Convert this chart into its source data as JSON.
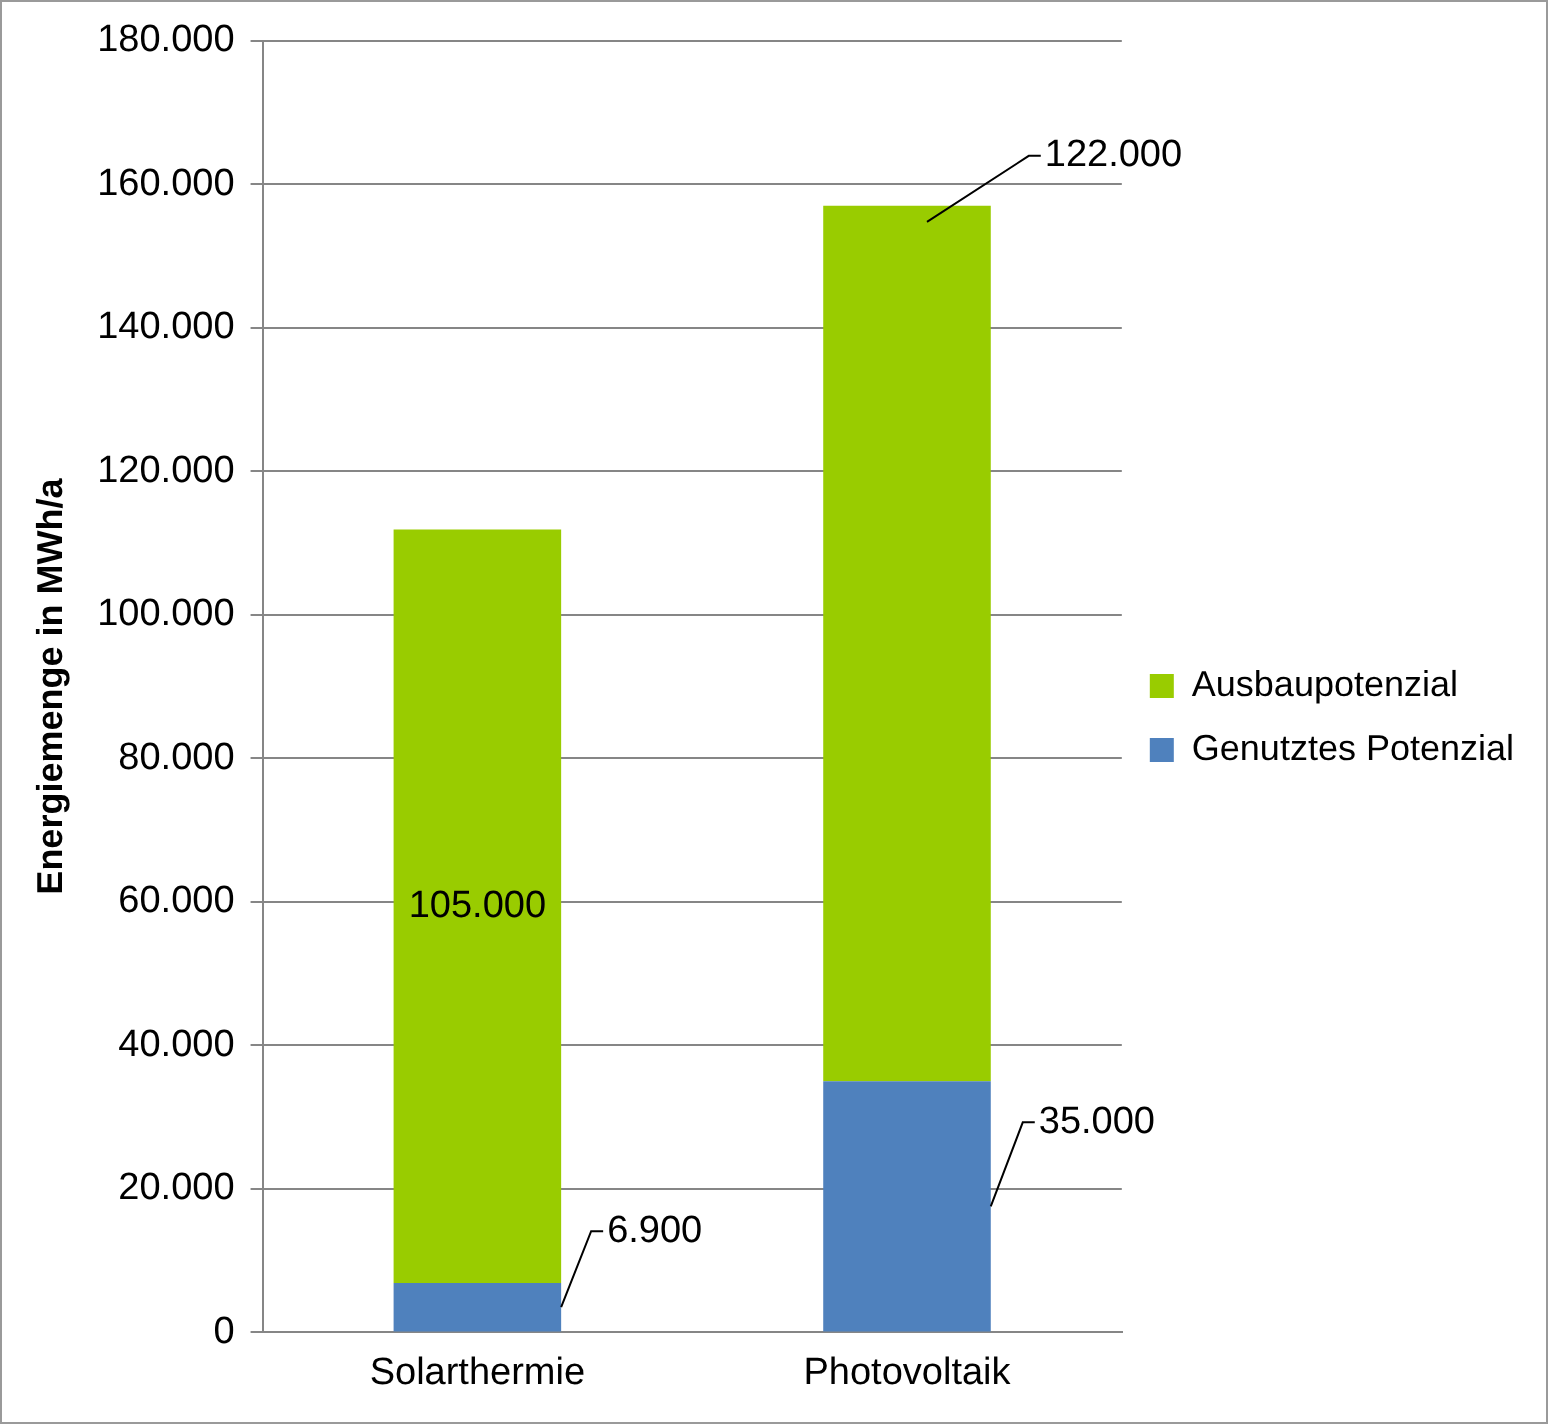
{
  "chart_data": {
    "type": "bar",
    "stacked": true,
    "ylabel": "Energiemenge in MWh/a",
    "categories": [
      "Solarthermie",
      "Photovoltaik"
    ],
    "series": [
      {
        "name": "Genutztes Potenzial",
        "color": "#4f81bd",
        "values": [
          6900,
          35000
        ],
        "value_labels": [
          "6.900",
          "35.000"
        ]
      },
      {
        "name": "Ausbaupotenzial",
        "color": "#99cc00",
        "values": [
          105000,
          122000
        ],
        "value_labels": [
          "105.000",
          "122.000"
        ]
      }
    ],
    "ylim": [
      0,
      180000
    ],
    "yticks": [
      {
        "value": 0,
        "label": "0"
      },
      {
        "value": 20000,
        "label": "20.000"
      },
      {
        "value": 40000,
        "label": "40.000"
      },
      {
        "value": 60000,
        "label": "60.000"
      },
      {
        "value": 80000,
        "label": "80.000"
      },
      {
        "value": 100000,
        "label": "100.000"
      },
      {
        "value": 120000,
        "label": "120.000"
      },
      {
        "value": 140000,
        "label": "140.000"
      },
      {
        "value": 160000,
        "label": "160.000"
      },
      {
        "value": 180000,
        "label": "180.000"
      }
    ],
    "grid": "y",
    "legend": "right"
  }
}
